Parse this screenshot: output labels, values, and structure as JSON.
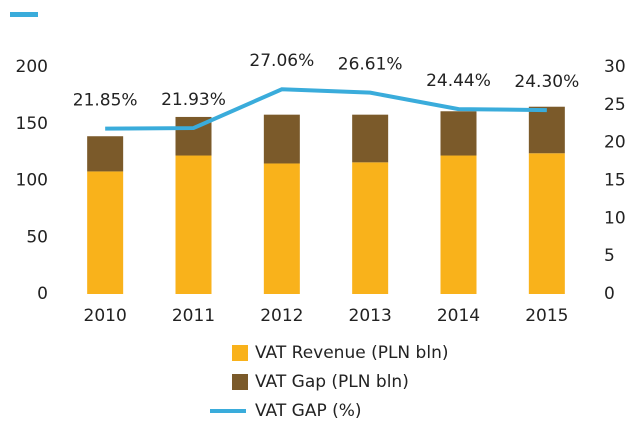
{
  "chart_data": {
    "type": "bar",
    "categories": [
      "2010",
      "2011",
      "2012",
      "2013",
      "2014",
      "2015"
    ],
    "series": [
      {
        "name": "VAT Revenue (PLN bln)",
        "color": "#f9b21b",
        "type": "bar",
        "values": [
          108,
          122,
          115,
          116,
          122,
          124
        ]
      },
      {
        "name": "VAT Gap (PLN bln)",
        "color": "#7b5a2a",
        "type": "bar",
        "values": [
          31,
          34,
          43,
          42,
          39,
          41
        ]
      },
      {
        "name": "VAT GAP (%)",
        "color": "#3aacdb",
        "type": "line",
        "axis": "y2",
        "values": [
          21.85,
          21.93,
          27.06,
          26.61,
          24.44,
          24.3
        ],
        "value_labels": [
          "21.85%",
          "21.93%",
          "27.06%",
          "26.61%",
          "24.44%",
          "24.30%"
        ]
      }
    ],
    "stacked": true,
    "ylim": [
      0,
      200
    ],
    "yticks": [
      0,
      50,
      100,
      150,
      200
    ],
    "y2lim": [
      0,
      30
    ],
    "y2ticks": [
      0,
      5,
      10,
      15,
      20,
      25,
      30
    ],
    "grid": false,
    "legend": "bottom"
  }
}
